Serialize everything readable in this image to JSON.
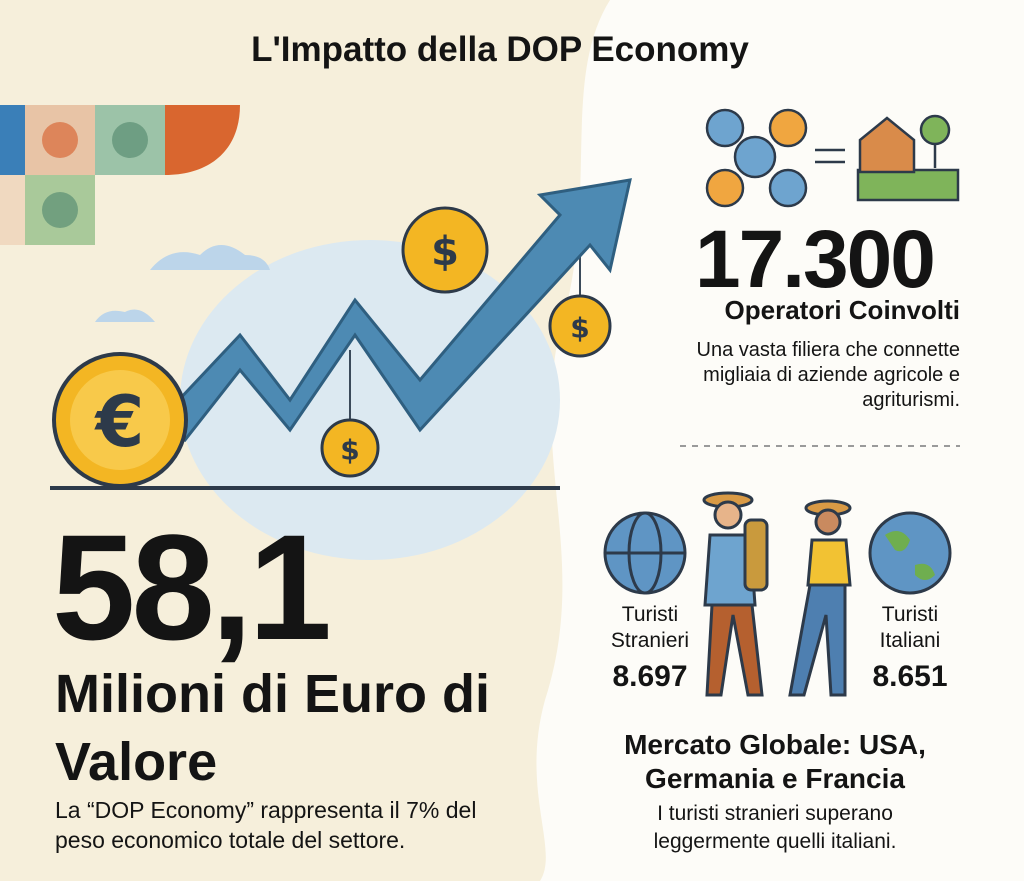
{
  "title": "L'Impatto della DOP Economy",
  "icons": {
    "euro": "€",
    "dollar": "$"
  },
  "value_block": {
    "number": "58,1",
    "unit": "Milioni di Euro di Valore",
    "note": "La “DOP Economy” rappresenta il 7% del peso economico totale del settore."
  },
  "operators": {
    "number": "17.300",
    "label": "Operatori Coinvolti",
    "description": "Una vasta filiera che connette migliaia di aziende agricole e agriturismi."
  },
  "tourists": {
    "foreign": {
      "label": "Turisti Stranieri",
      "value": "8.697"
    },
    "italian": {
      "label": "Turisti Italiani",
      "value": "8.651"
    },
    "market": "Mercato Globale: USA, Germania e Francia",
    "note": "I turisti stranieri superano leggermente quelli italiani."
  }
}
